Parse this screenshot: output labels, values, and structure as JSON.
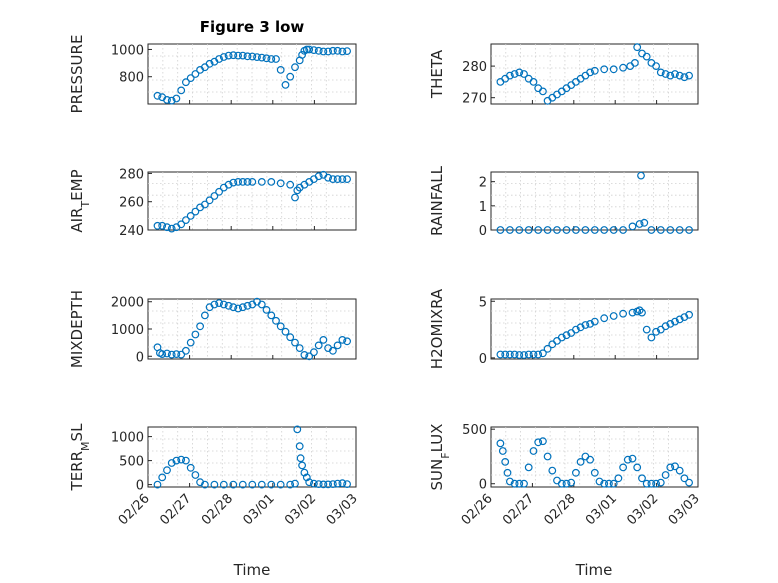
{
  "figure": {
    "title": "Figure 3 low"
  },
  "chart_data": [
    {
      "type": "scatter",
      "ylabel": "PRESSURE",
      "title": "Figure 3 low",
      "xlim": [
        0,
        7
      ],
      "ylim": [
        600,
        1040
      ],
      "yticks": [
        800,
        1000
      ],
      "x": [
        1.0,
        1.1,
        1.2,
        1.3,
        1.4,
        1.5,
        1.6,
        1.7,
        1.8,
        1.9,
        2.0,
        2.1,
        2.2,
        2.3,
        2.4,
        2.5,
        2.6,
        2.7,
        2.8,
        2.9,
        3.0,
        3.1,
        3.2,
        3.3,
        3.4,
        3.5,
        3.6,
        3.7,
        3.8,
        3.9,
        4.0,
        4.05,
        4.1,
        4.15,
        4.2,
        4.3,
        4.4,
        4.5,
        4.6,
        4.7,
        4.8,
        4.9,
        5.0
      ],
      "y": [
        660,
        650,
        630,
        625,
        640,
        700,
        760,
        790,
        820,
        850,
        870,
        895,
        910,
        930,
        945,
        955,
        958,
        955,
        955,
        950,
        948,
        944,
        940,
        935,
        930,
        930,
        850,
        740,
        800,
        870,
        920,
        960,
        990,
        1000,
        1000,
        995,
        990,
        985,
        985,
        990,
        990,
        985,
        988
      ]
    },
    {
      "type": "scatter",
      "ylabel": "THETA",
      "xlim": [
        0,
        7
      ],
      "ylim": [
        268,
        287
      ],
      "yticks": [
        270,
        280
      ],
      "x": [
        1.0,
        1.1,
        1.2,
        1.3,
        1.4,
        1.5,
        1.6,
        1.7,
        1.8,
        1.9,
        2.0,
        2.1,
        2.2,
        2.3,
        2.4,
        2.5,
        2.6,
        2.7,
        2.8,
        2.9,
        3.0,
        3.2,
        3.4,
        3.6,
        3.75,
        3.85,
        3.9,
        4.0,
        4.1,
        4.2,
        4.3,
        4.4,
        4.5,
        4.6,
        4.7,
        4.8,
        4.9,
        5.0
      ],
      "y": [
        275,
        276,
        277,
        277.5,
        278,
        277.5,
        276,
        275,
        273,
        272,
        269,
        270,
        271,
        272,
        273,
        274,
        275,
        276,
        277,
        278,
        278.5,
        279,
        279,
        279.5,
        280,
        281,
        286,
        284,
        283,
        281,
        280,
        278,
        277.5,
        277,
        277.5,
        277,
        276.5,
        277
      ]
    },
    {
      "type": "scatter",
      "ylabel": "AIR_TEMP",
      "xlim": [
        0,
        7
      ],
      "ylim": [
        240,
        281
      ],
      "yticks": [
        240,
        260,
        280
      ],
      "x": [
        1.0,
        1.1,
        1.2,
        1.3,
        1.4,
        1.5,
        1.6,
        1.7,
        1.8,
        1.9,
        2.0,
        2.1,
        2.2,
        2.3,
        2.4,
        2.5,
        2.6,
        2.7,
        2.8,
        2.9,
        3.0,
        3.2,
        3.4,
        3.6,
        3.8,
        3.9,
        3.95,
        4.0,
        4.1,
        4.2,
        4.3,
        4.4,
        4.5,
        4.6,
        4.7,
        4.8,
        4.9,
        5.0
      ],
      "y": [
        243,
        243,
        242,
        241,
        242,
        244,
        247,
        250,
        253,
        256,
        258,
        261,
        264,
        267,
        270,
        272,
        273.5,
        274,
        274,
        274,
        274,
        274,
        274,
        273,
        272,
        263,
        268,
        270,
        272,
        274,
        276,
        278,
        279,
        277,
        276,
        276,
        276,
        276
      ]
    },
    {
      "type": "scatter",
      "ylabel": "RAINFALL",
      "xlim": [
        0,
        7
      ],
      "ylim": [
        0,
        2.4
      ],
      "yticks": [
        0,
        1,
        2
      ],
      "x": [
        1.0,
        1.2,
        1.4,
        1.6,
        1.8,
        2.0,
        2.2,
        2.4,
        2.6,
        2.8,
        3.0,
        3.2,
        3.4,
        3.6,
        3.8,
        3.95,
        3.98,
        4.05,
        4.2,
        4.4,
        4.6,
        4.8,
        5.0
      ],
      "y": [
        0,
        0,
        0,
        0,
        0,
        0,
        0,
        0,
        0,
        0,
        0,
        0,
        0,
        0,
        0.15,
        0.25,
        2.25,
        0.3,
        0,
        0,
        0,
        0,
        0
      ]
    },
    {
      "type": "scatter",
      "ylabel": "MIXDEPTH",
      "xlim": [
        0,
        7
      ],
      "ylim": [
        -100,
        2100
      ],
      "yticks": [
        0,
        1000,
        2000
      ],
      "x": [
        1.0,
        1.05,
        1.1,
        1.2,
        1.3,
        1.4,
        1.5,
        1.6,
        1.7,
        1.8,
        1.9,
        2.0,
        2.1,
        2.2,
        2.3,
        2.4,
        2.5,
        2.6,
        2.7,
        2.8,
        2.9,
        3.0,
        3.1,
        3.2,
        3.3,
        3.4,
        3.5,
        3.6,
        3.7,
        3.8,
        3.9,
        4.0,
        4.1,
        4.2,
        4.3,
        4.4,
        4.5,
        4.6,
        4.7,
        4.8,
        4.9,
        5.0
      ],
      "y": [
        330,
        120,
        80,
        100,
        60,
        80,
        60,
        200,
        500,
        800,
        1100,
        1500,
        1800,
        1900,
        1950,
        1900,
        1850,
        1800,
        1750,
        1800,
        1850,
        1900,
        2000,
        1900,
        1700,
        1500,
        1300,
        1100,
        900,
        700,
        500,
        300,
        50,
        0,
        150,
        400,
        600,
        300,
        200,
        400,
        600,
        550
      ]
    },
    {
      "type": "scatter",
      "ylabel": "H2OMIXRA",
      "xlim": [
        0,
        7
      ],
      "ylim": [
        -0.1,
        5.2
      ],
      "yticks": [
        0,
        5
      ],
      "x": [
        1.0,
        1.1,
        1.2,
        1.3,
        1.4,
        1.5,
        1.6,
        1.7,
        1.8,
        1.9,
        2.0,
        2.1,
        2.2,
        2.3,
        2.4,
        2.5,
        2.6,
        2.7,
        2.8,
        2.9,
        3.0,
        3.2,
        3.4,
        3.6,
        3.8,
        3.9,
        3.95,
        4.0,
        4.1,
        4.2,
        4.3,
        4.4,
        4.5,
        4.6,
        4.7,
        4.8,
        4.9,
        5.0
      ],
      "y": [
        0.3,
        0.3,
        0.3,
        0.3,
        0.25,
        0.25,
        0.3,
        0.3,
        0.3,
        0.4,
        0.8,
        1.2,
        1.5,
        1.8,
        2.0,
        2.2,
        2.5,
        2.7,
        2.9,
        3.0,
        3.2,
        3.5,
        3.7,
        3.9,
        4.0,
        4.1,
        4.2,
        4.0,
        2.5,
        1.8,
        2.3,
        2.5,
        2.8,
        3.0,
        3.2,
        3.4,
        3.6,
        3.8
      ]
    },
    {
      "type": "scatter",
      "ylabel": "TERR_MSL",
      "xlim": [
        0,
        7
      ],
      "ylim": [
        -50,
        1200
      ],
      "yticks": [
        0,
        500,
        1000
      ],
      "x": [
        1.0,
        1.1,
        1.2,
        1.3,
        1.4,
        1.5,
        1.6,
        1.7,
        1.8,
        1.9,
        2.0,
        2.2,
        2.4,
        2.6,
        2.8,
        3.0,
        3.2,
        3.4,
        3.6,
        3.8,
        3.9,
        3.95,
        4.0,
        4.02,
        4.05,
        4.1,
        4.15,
        4.2,
        4.3,
        4.4,
        4.5,
        4.6,
        4.7,
        4.8,
        4.9,
        5.0
      ],
      "y": [
        0,
        150,
        300,
        450,
        500,
        520,
        500,
        350,
        200,
        50,
        0,
        0,
        0,
        0,
        0,
        0,
        0,
        0,
        0,
        0,
        20,
        1150,
        800,
        550,
        400,
        250,
        150,
        50,
        20,
        10,
        5,
        5,
        10,
        20,
        30,
        10
      ]
    },
    {
      "type": "scatter",
      "ylabel": "SUN_FLUX",
      "xlim": [
        0,
        7
      ],
      "ylim": [
        -30,
        520
      ],
      "yticks": [
        0,
        500
      ],
      "x": [
        1.0,
        1.05,
        1.1,
        1.15,
        1.2,
        1.3,
        1.4,
        1.5,
        1.6,
        1.7,
        1.8,
        1.9,
        2.0,
        2.1,
        2.2,
        2.3,
        2.4,
        2.5,
        2.6,
        2.7,
        2.8,
        2.9,
        3.0,
        3.1,
        3.2,
        3.3,
        3.4,
        3.5,
        3.6,
        3.7,
        3.8,
        3.9,
        4.0,
        4.1,
        4.2,
        4.3,
        4.4,
        4.5,
        4.6,
        4.7,
        4.8,
        4.9,
        5.0
      ],
      "y": [
        370,
        300,
        200,
        100,
        20,
        0,
        0,
        0,
        150,
        300,
        380,
        390,
        250,
        120,
        30,
        0,
        0,
        10,
        100,
        200,
        250,
        220,
        100,
        20,
        0,
        0,
        0,
        50,
        150,
        220,
        230,
        150,
        50,
        0,
        0,
        0,
        10,
        80,
        150,
        160,
        120,
        50,
        10
      ]
    }
  ],
  "xaxis": {
    "ticks": [
      "02/26",
      "02/27",
      "02/28",
      "03/01",
      "03/02",
      "03/03"
    ],
    "label": "Time"
  }
}
